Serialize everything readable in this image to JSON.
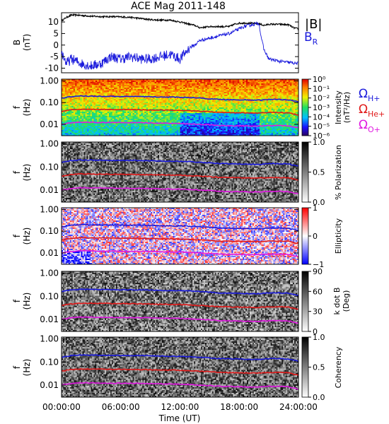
{
  "title": "ACE Mag 2011-148",
  "xlabel": "Time (UT)",
  "x_ticks": [
    "00:00:00",
    "06:00:00",
    "12:00:00",
    "18:00:00",
    "24:00:00"
  ],
  "freq_ticks": [
    "1.00",
    "0.10",
    "0.01"
  ],
  "legend": {
    "b_total": "|B|",
    "b_r_main": "B",
    "b_r_sub": "R",
    "omega_h_sub": "H+",
    "omega_he_sub": "He+",
    "omega_o_sub": "O+"
  },
  "colors": {
    "b_total": "#000000",
    "b_r": "#1a1adc",
    "omega_h": "#1a1adc",
    "omega_he": "#e01818",
    "omega_o": "#e018e0"
  },
  "panels": {
    "bfield": {
      "ylabel_main": "B",
      "ylabel_unit": "(nT)",
      "yticks": [
        "10",
        "5",
        "0",
        "-5",
        "-10"
      ]
    },
    "intensity": {
      "ylabel_main": "f",
      "ylabel_unit": "(Hz)",
      "cb_label1": "Intensity",
      "cb_label2": "(nT²/Hz)",
      "cb_ticks": [
        "10⁰",
        "10⁻¹",
        "10⁻²",
        "10⁻³",
        "10⁻⁴",
        "10⁻⁵",
        "10⁻⁶"
      ]
    },
    "polarization": {
      "ylabel_main": "f",
      "ylabel_unit": "(Hz)",
      "cb_label1": "% Polarization",
      "cb_label2": "",
      "cb_ticks": [
        "1.0",
        "0.5",
        "0.0"
      ]
    },
    "ellipticity": {
      "ylabel_main": "f",
      "ylabel_unit": "(Hz)",
      "cb_label1": "Ellipticity",
      "cb_label2": "",
      "cb_ticks": [
        "1",
        "0",
        "−1"
      ]
    },
    "kdotb": {
      "ylabel_main": "f",
      "ylabel_unit": "(Hz)",
      "cb_label1": "k dot B",
      "cb_label2": "(Deg)",
      "cb_ticks": [
        "90",
        "60",
        "30",
        "0"
      ]
    },
    "coherency": {
      "ylabel_main": "f",
      "ylabel_unit": "(Hz)",
      "cb_label1": "Coherency",
      "cb_label2": "",
      "cb_ticks": [
        "1.0",
        "0.5",
        "0.0"
      ]
    }
  },
  "chart_data": [
    {
      "type": "line",
      "panel": "bfield",
      "ylim": [
        -12,
        14
      ],
      "xlim": [
        0,
        24
      ],
      "series": [
        {
          "name": "|B|",
          "x": [
            0,
            0.5,
            1,
            1.5,
            2,
            3,
            4,
            5,
            6,
            7,
            8,
            9,
            10,
            11,
            12,
            13,
            13.5,
            14,
            15,
            16,
            17,
            17.5,
            18,
            19,
            20,
            20.5,
            21,
            22,
            23,
            23.5,
            24
          ],
          "y": [
            10.5,
            12,
            13,
            13,
            12.8,
            12.5,
            12.3,
            12.3,
            12.2,
            12.0,
            11.5,
            11.0,
            10.8,
            10.8,
            10.0,
            9.0,
            8.5,
            7.5,
            8.0,
            8.0,
            8.0,
            9.0,
            9.5,
            9.5,
            9.2,
            8.5,
            9.0,
            9.0,
            8.8,
            7.5,
            7.0
          ]
        },
        {
          "name": "B_R",
          "x": [
            0,
            0.5,
            1,
            2,
            3,
            4,
            5,
            6,
            7,
            8,
            9,
            10,
            11,
            12,
            13,
            13.5,
            14,
            15,
            16,
            17,
            18,
            18.5,
            19,
            19.5,
            20,
            20.2,
            20.5,
            21,
            22,
            23,
            24
          ],
          "y": [
            -3,
            -8,
            -6,
            -8,
            -9,
            -8,
            -5,
            -6,
            -5,
            -6,
            -6,
            -5,
            -4,
            -6,
            -1,
            0,
            2,
            3,
            4,
            5,
            7,
            8,
            8.5,
            9,
            9.5,
            4,
            -2,
            -6,
            -7,
            -7.5,
            -8
          ]
        }
      ]
    },
    {
      "type": "heatmap",
      "panel": "intensity",
      "xlim": [
        0,
        24
      ],
      "ylim_hz": [
        0.003,
        1.2
      ],
      "log_y": true,
      "colorbar": "log intensity 1e-6 to 1e0 nT^2/Hz (rainbow)"
    },
    {
      "type": "line",
      "name": "ion gyrofrequencies (overlaid on all frequency panels)",
      "xlim": [
        0,
        24
      ],
      "series": [
        {
          "name": "H+",
          "x": [
            0,
            1,
            2,
            4,
            6,
            8,
            10,
            12,
            13,
            14,
            15,
            16,
            18,
            19,
            20,
            21,
            22,
            23,
            23.5,
            24
          ],
          "y": [
            0.16,
            0.19,
            0.2,
            0.195,
            0.19,
            0.19,
            0.18,
            0.175,
            0.17,
            0.16,
            0.15,
            0.14,
            0.135,
            0.13,
            0.13,
            0.14,
            0.14,
            0.135,
            0.12,
            0.11
          ]
        },
        {
          "name": "He+",
          "x": [
            0,
            1,
            2,
            4,
            6,
            8,
            10,
            12,
            13,
            14,
            15,
            16,
            18,
            19,
            20,
            21,
            22,
            23,
            23.5,
            24
          ],
          "y": [
            0.04,
            0.047,
            0.05,
            0.049,
            0.048,
            0.047,
            0.045,
            0.044,
            0.042,
            0.04,
            0.038,
            0.035,
            0.034,
            0.033,
            0.033,
            0.035,
            0.035,
            0.034,
            0.03,
            0.027
          ]
        },
        {
          "name": "O+",
          "x": [
            0,
            1,
            2,
            4,
            6,
            8,
            10,
            12,
            13,
            14,
            15,
            16,
            18,
            19,
            20,
            21,
            22,
            23,
            23.5,
            24
          ],
          "y": [
            0.01,
            0.0118,
            0.0125,
            0.0122,
            0.012,
            0.0118,
            0.0113,
            0.011,
            0.0105,
            0.01,
            0.0095,
            0.0088,
            0.0085,
            0.0083,
            0.0083,
            0.0088,
            0.0088,
            0.0085,
            0.0075,
            0.0068
          ]
        }
      ]
    },
    {
      "type": "heatmap",
      "panel": "polarization",
      "xlim": [
        0,
        24
      ],
      "colorbar": [
        0,
        1
      ]
    },
    {
      "type": "heatmap",
      "panel": "ellipticity",
      "xlim": [
        0,
        24
      ],
      "colorbar": [
        -1,
        1
      ]
    },
    {
      "type": "heatmap",
      "panel": "kdotb",
      "xlim": [
        0,
        24
      ],
      "colorbar": [
        0,
        90
      ]
    },
    {
      "type": "heatmap",
      "panel": "coherency",
      "xlim": [
        0,
        24
      ],
      "colorbar": [
        0,
        1
      ]
    }
  ]
}
